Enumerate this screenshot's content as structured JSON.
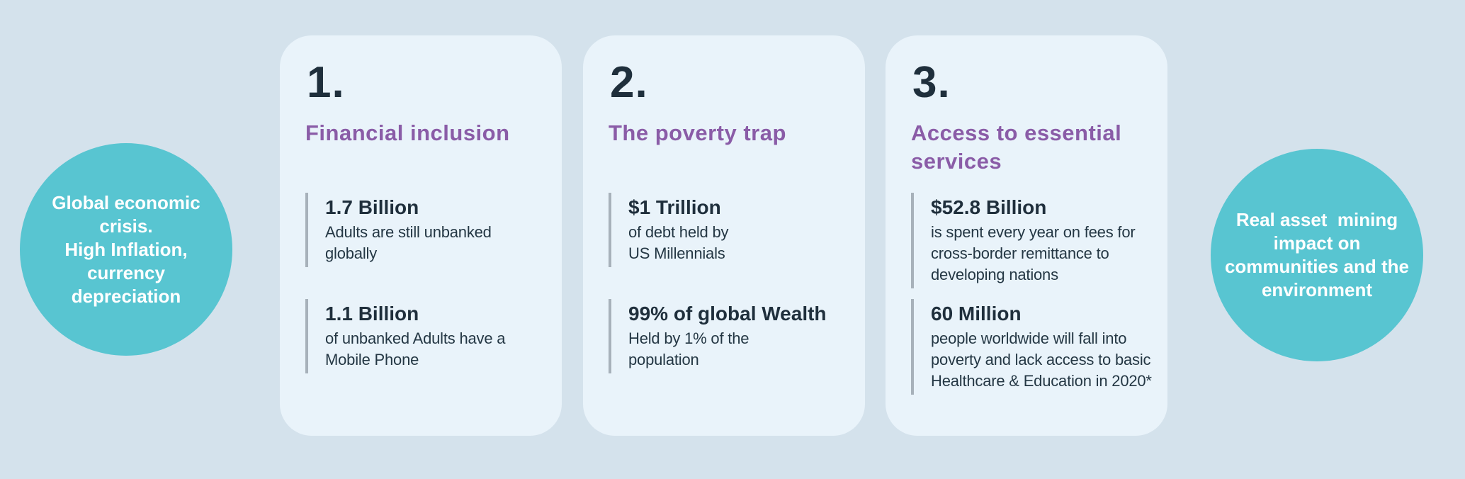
{
  "colors": {
    "page_background": "#d4e2ec",
    "card_background": "#e9f3fa",
    "circle_teal": "#58c5d1",
    "heading_purple": "#8a5ca7",
    "text_dark_navy": "#1f2f3c",
    "stat_bar_gray": "#a7b1ba",
    "circle_text_white": "#ffffff"
  },
  "circles": {
    "left": {
      "text": "Global economic\ncrisis.\nHigh Inflation,\ncurrency\ndepreciation"
    },
    "right": {
      "text": "Real asset  mining\nimpact on\ncommunities and the\nenvironment"
    }
  },
  "cards": [
    {
      "number": "1.",
      "title": "Financial inclusion",
      "stats": [
        {
          "value": "1.7 Billion",
          "desc": "Adults are still unbanked\nglobally"
        },
        {
          "value": "1.1 Billion",
          "desc": "of unbanked Adults have a\nMobile Phone"
        }
      ]
    },
    {
      "number": "2.",
      "title": "The poverty trap",
      "stats": [
        {
          "value": "$1 Trillion",
          "desc": "of debt held by\nUS Millennials"
        },
        {
          "value": "99% of global Wealth",
          "desc": "Held by 1% of the\npopulation"
        }
      ]
    },
    {
      "number": "3.",
      "title": "Access to essential\nservices",
      "stats": [
        {
          "value": "$52.8 Billion",
          "desc": "is spent every year on fees for\ncross-border remittance to\ndeveloping nations"
        },
        {
          "value": "60 Million",
          "desc": "people worldwide will fall into\npoverty and lack access to basic\nHealthcare & Education in 2020*"
        }
      ]
    }
  ]
}
